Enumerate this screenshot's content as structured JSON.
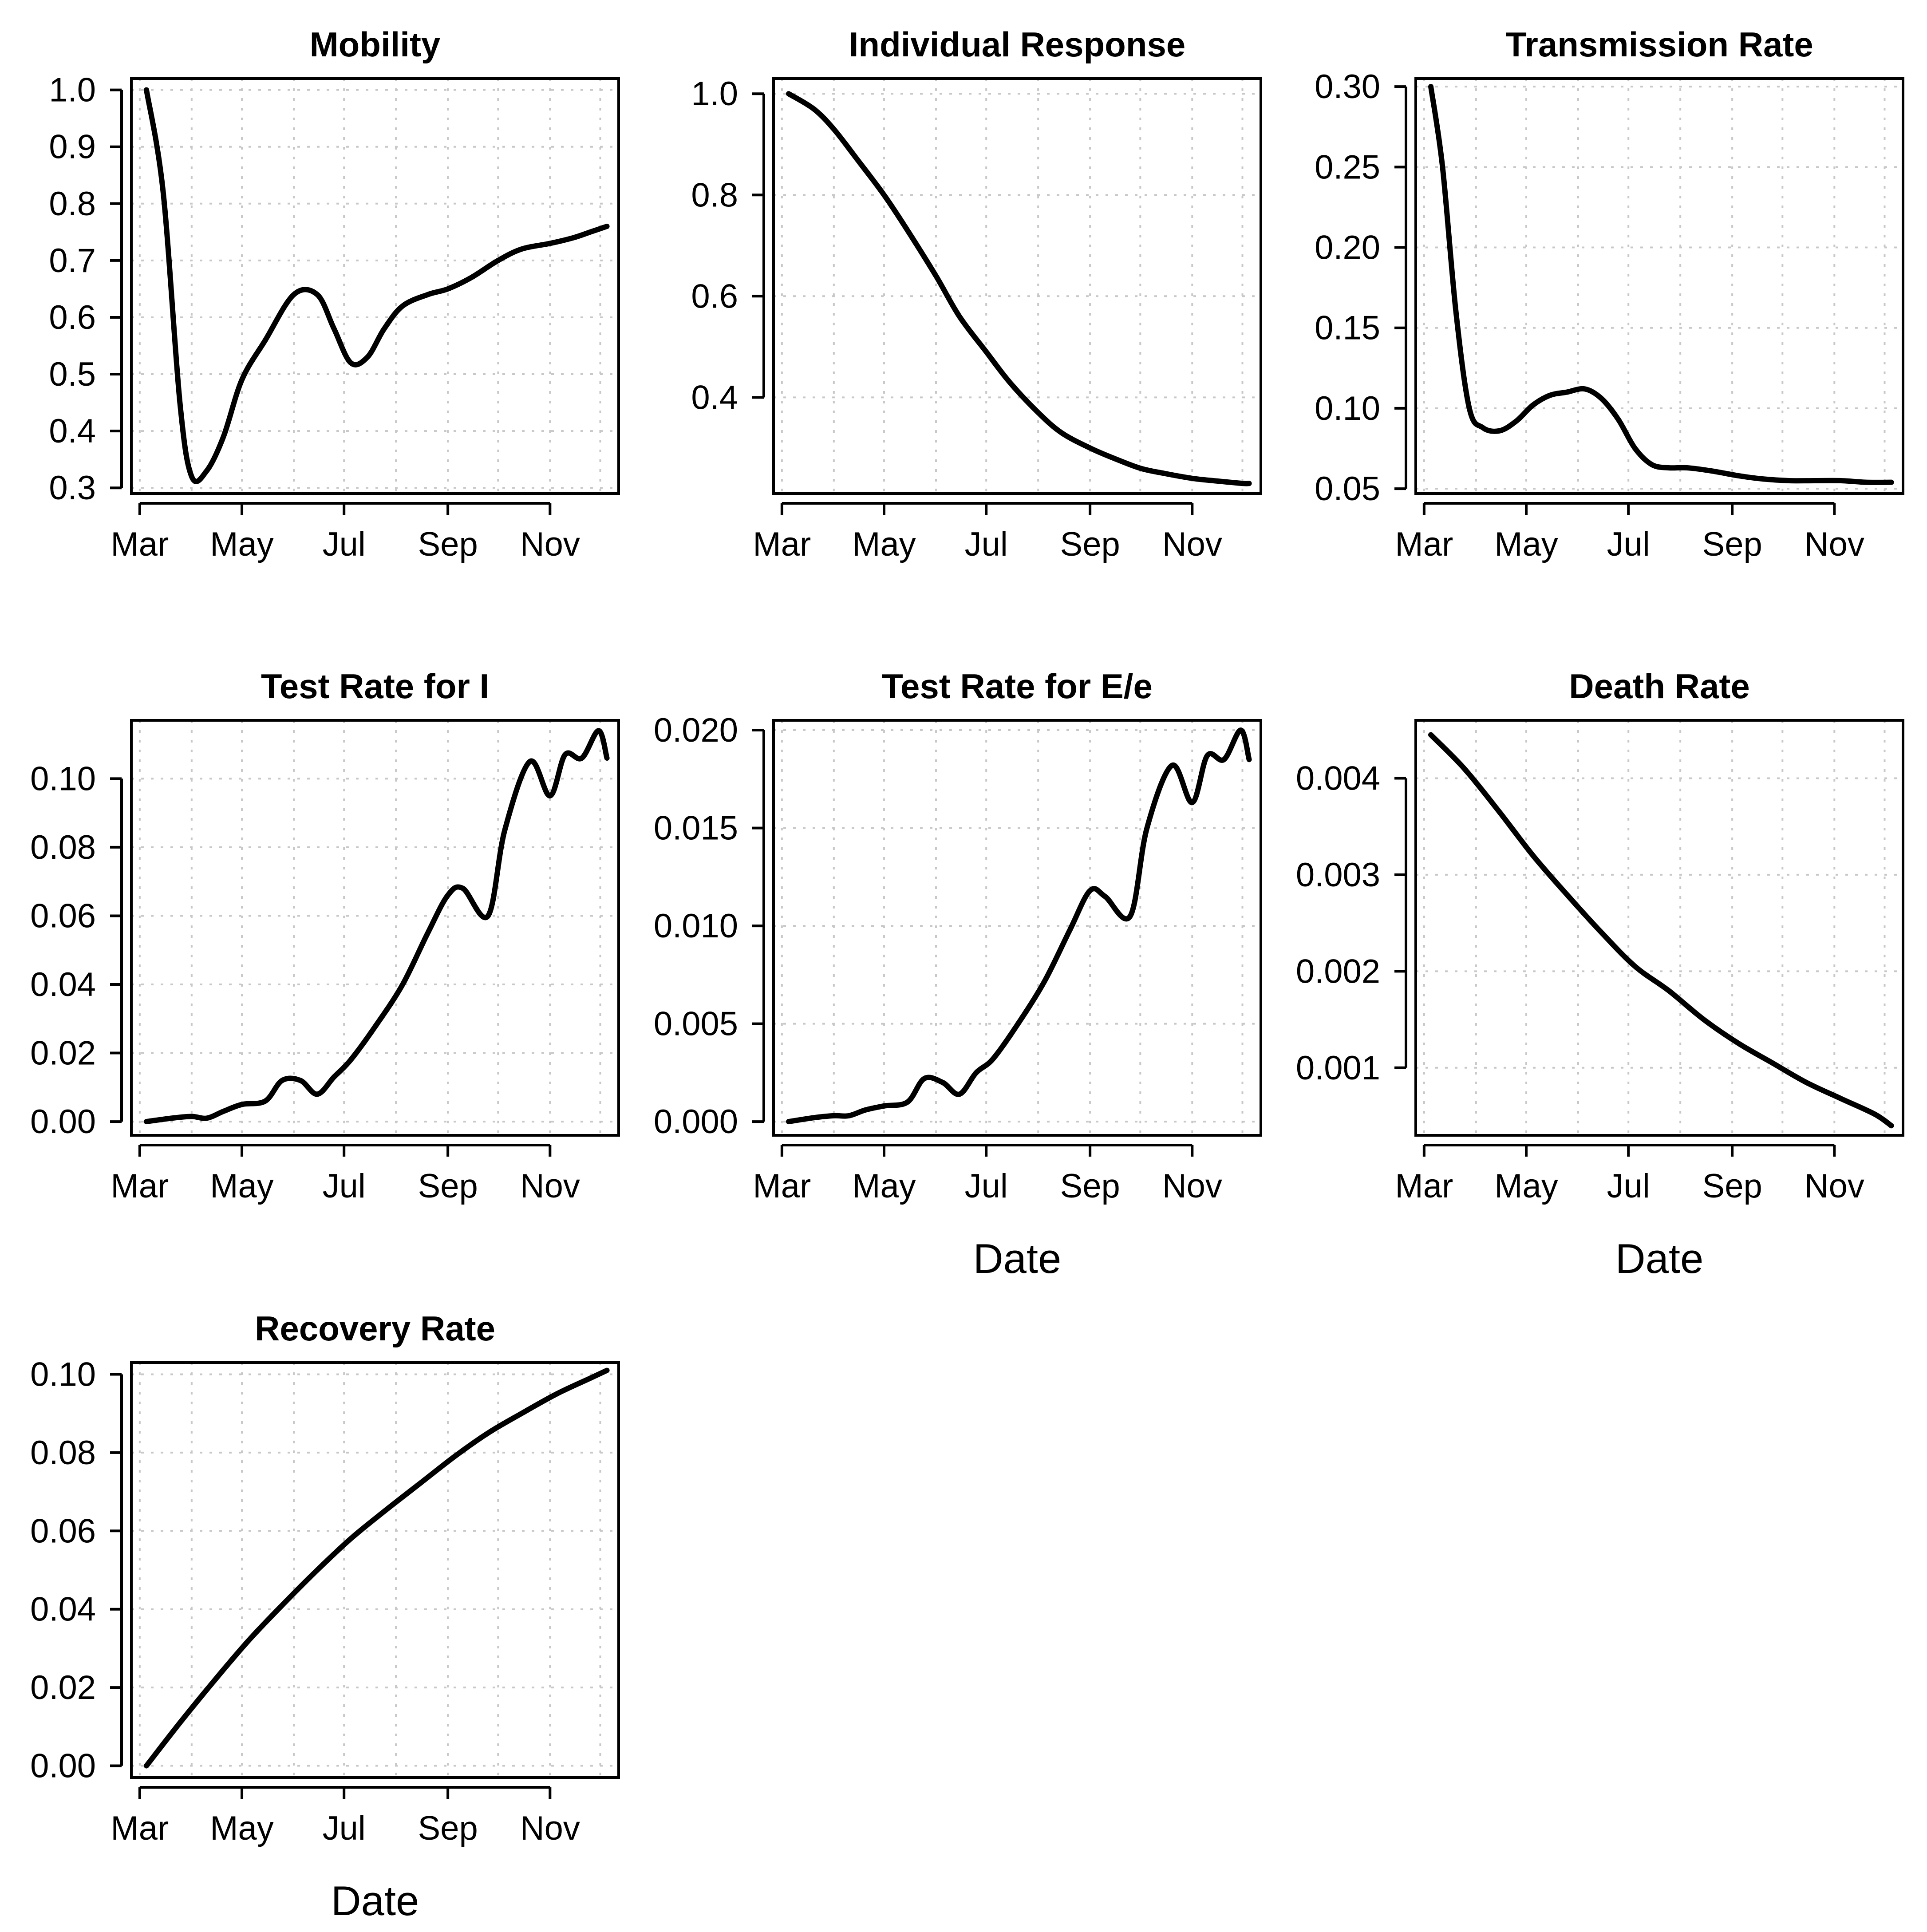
{
  "chart_data": [
    {
      "id": "mobility",
      "type": "line",
      "title": "Mobility",
      "xlabel": "",
      "ylabel": "",
      "xticks": [
        "Mar",
        "May",
        "Jul",
        "Sep",
        "Nov"
      ],
      "yticks": [
        "0.3",
        "0.4",
        "0.5",
        "0.6",
        "0.7",
        "0.8",
        "0.9",
        "1.0"
      ],
      "ylim": [
        0.29,
        1.02
      ],
      "grid": true,
      "x": [
        "2020-03-05",
        "2020-03-15",
        "2020-03-25",
        "2020-04-01",
        "2020-04-10",
        "2020-04-20",
        "2020-05-01",
        "2020-05-15",
        "2020-06-01",
        "2020-06-15",
        "2020-06-25",
        "2020-07-05",
        "2020-07-15",
        "2020-07-25",
        "2020-08-05",
        "2020-08-20",
        "2020-09-01",
        "2020-09-15",
        "2020-10-01",
        "2020-10-15",
        "2020-11-01",
        "2020-11-15",
        "2020-11-25",
        "2020-12-05"
      ],
      "y": [
        1.0,
        0.82,
        0.45,
        0.32,
        0.33,
        0.39,
        0.49,
        0.56,
        0.64,
        0.64,
        0.58,
        0.52,
        0.53,
        0.58,
        0.62,
        0.64,
        0.65,
        0.67,
        0.7,
        0.72,
        0.73,
        0.74,
        0.75,
        0.76
      ]
    },
    {
      "id": "individual-response",
      "type": "line",
      "title": "Individual Response",
      "xlabel": "",
      "ylabel": "",
      "xticks": [
        "Mar",
        "May",
        "Jul",
        "Sep",
        "Nov"
      ],
      "yticks": [
        "0.4",
        "0.6",
        "0.8",
        "1.0"
      ],
      "ylim": [
        0.21,
        1.03
      ],
      "grid": true,
      "x": [
        "2020-03-05",
        "2020-03-20",
        "2020-04-01",
        "2020-04-15",
        "2020-05-01",
        "2020-05-15",
        "2020-06-01",
        "2020-06-15",
        "2020-07-01",
        "2020-07-15",
        "2020-08-01",
        "2020-08-15",
        "2020-09-01",
        "2020-09-15",
        "2020-10-01",
        "2020-10-15",
        "2020-11-01",
        "2020-11-15",
        "2020-12-01",
        "2020-12-05"
      ],
      "y": [
        1.0,
        0.97,
        0.93,
        0.87,
        0.8,
        0.73,
        0.64,
        0.56,
        0.49,
        0.43,
        0.37,
        0.33,
        0.3,
        0.28,
        0.26,
        0.25,
        0.24,
        0.235,
        0.23,
        0.23
      ]
    },
    {
      "id": "transmission-rate",
      "type": "line",
      "title": "Transmission Rate",
      "xlabel": "",
      "ylabel": "",
      "xticks": [
        "Mar",
        "May",
        "Jul",
        "Sep",
        "Nov"
      ],
      "yticks": [
        "0.05",
        "0.10",
        "0.15",
        "0.20",
        "0.25",
        "0.30"
      ],
      "ylim": [
        0.047,
        0.305
      ],
      "grid": true,
      "x": [
        "2020-03-05",
        "2020-03-12",
        "2020-03-20",
        "2020-03-28",
        "2020-04-05",
        "2020-04-15",
        "2020-04-25",
        "2020-05-05",
        "2020-05-15",
        "2020-05-25",
        "2020-06-05",
        "2020-06-15",
        "2020-06-25",
        "2020-07-05",
        "2020-07-15",
        "2020-07-25",
        "2020-08-05",
        "2020-08-20",
        "2020-09-05",
        "2020-09-20",
        "2020-10-05",
        "2020-10-20",
        "2020-11-05",
        "2020-11-20",
        "2020-12-05"
      ],
      "y": [
        0.3,
        0.25,
        0.16,
        0.1,
        0.088,
        0.086,
        0.092,
        0.102,
        0.108,
        0.11,
        0.112,
        0.106,
        0.093,
        0.075,
        0.065,
        0.063,
        0.063,
        0.061,
        0.058,
        0.056,
        0.055,
        0.055,
        0.055,
        0.054,
        0.054
      ]
    },
    {
      "id": "test-rate-i",
      "type": "line",
      "title": "Test Rate for I",
      "xlabel": "",
      "ylabel": "",
      "xticks": [
        "Mar",
        "May",
        "Jul",
        "Sep",
        "Nov"
      ],
      "yticks": [
        "0.00",
        "0.02",
        "0.04",
        "0.06",
        "0.08",
        "0.10"
      ],
      "ylim": [
        -0.004,
        0.117
      ],
      "grid": true,
      "x": [
        "2020-03-05",
        "2020-03-20",
        "2020-04-01",
        "2020-04-10",
        "2020-04-20",
        "2020-05-01",
        "2020-05-15",
        "2020-05-25",
        "2020-06-05",
        "2020-06-15",
        "2020-06-25",
        "2020-07-05",
        "2020-07-20",
        "2020-08-05",
        "2020-08-20",
        "2020-09-01",
        "2020-09-10",
        "2020-09-25",
        "2020-10-05",
        "2020-10-20",
        "2020-11-01",
        "2020-11-10",
        "2020-11-20",
        "2020-11-30",
        "2020-12-05"
      ],
      "y": [
        0.0,
        0.001,
        0.0015,
        0.001,
        0.003,
        0.005,
        0.006,
        0.012,
        0.012,
        0.008,
        0.013,
        0.018,
        0.028,
        0.04,
        0.055,
        0.066,
        0.068,
        0.06,
        0.085,
        0.105,
        0.095,
        0.107,
        0.106,
        0.114,
        0.106
      ]
    },
    {
      "id": "test-rate-e",
      "type": "line",
      "title": "Test Rate for E/e",
      "xlabel": "Date",
      "ylabel": "",
      "xticks": [
        "Mar",
        "May",
        "Jul",
        "Sep",
        "Nov"
      ],
      "yticks": [
        "0.000",
        "0.005",
        "0.010",
        "0.015",
        "0.020"
      ],
      "ylim": [
        -0.0007,
        0.0205
      ],
      "grid": true,
      "x": [
        "2020-03-05",
        "2020-03-20",
        "2020-04-01",
        "2020-04-10",
        "2020-04-20",
        "2020-05-01",
        "2020-05-15",
        "2020-05-25",
        "2020-06-05",
        "2020-06-15",
        "2020-06-25",
        "2020-07-05",
        "2020-07-20",
        "2020-08-05",
        "2020-08-20",
        "2020-09-01",
        "2020-09-10",
        "2020-09-25",
        "2020-10-05",
        "2020-10-20",
        "2020-11-01",
        "2020-11-10",
        "2020-11-20",
        "2020-11-30",
        "2020-12-05"
      ],
      "y": [
        0.0,
        0.0002,
        0.0003,
        0.0003,
        0.0006,
        0.0008,
        0.001,
        0.0022,
        0.002,
        0.0014,
        0.0025,
        0.0032,
        0.005,
        0.0072,
        0.0098,
        0.0118,
        0.0115,
        0.0105,
        0.015,
        0.0182,
        0.0163,
        0.0187,
        0.0185,
        0.02,
        0.0185
      ]
    },
    {
      "id": "death-rate",
      "type": "line",
      "title": "Death Rate",
      "xlabel": "Date",
      "ylabel": "",
      "xticks": [
        "Mar",
        "May",
        "Jul",
        "Sep",
        "Nov"
      ],
      "yticks": [
        "0.001",
        "0.002",
        "0.003",
        "0.004"
      ],
      "ylim": [
        0.0003,
        0.0046
      ],
      "grid": true,
      "x": [
        "2020-03-05",
        "2020-03-25",
        "2020-04-15",
        "2020-05-05",
        "2020-05-25",
        "2020-06-15",
        "2020-07-05",
        "2020-07-25",
        "2020-08-15",
        "2020-09-05",
        "2020-09-25",
        "2020-10-15",
        "2020-11-05",
        "2020-11-25",
        "2020-12-05"
      ],
      "y": [
        0.00445,
        0.0041,
        0.00365,
        0.0032,
        0.0028,
        0.0024,
        0.00205,
        0.0018,
        0.0015,
        0.00125,
        0.00105,
        0.00085,
        0.00068,
        0.00052,
        0.0004
      ]
    },
    {
      "id": "recovery-rate",
      "type": "line",
      "title": "Recovery Rate",
      "xlabel": "Date",
      "ylabel": "",
      "xticks": [
        "Mar",
        "May",
        "Jul",
        "Sep",
        "Nov"
      ],
      "yticks": [
        "0.00",
        "0.02",
        "0.04",
        "0.06",
        "0.08",
        "0.10"
      ],
      "ylim": [
        -0.003,
        0.103
      ],
      "grid": true,
      "x": [
        "2020-03-05",
        "2020-03-25",
        "2020-04-15",
        "2020-05-05",
        "2020-05-25",
        "2020-06-15",
        "2020-07-05",
        "2020-07-25",
        "2020-08-15",
        "2020-09-05",
        "2020-09-25",
        "2020-10-15",
        "2020-11-05",
        "2020-11-25",
        "2020-12-05"
      ],
      "y": [
        0.0,
        0.011,
        0.022,
        0.032,
        0.041,
        0.05,
        0.058,
        0.065,
        0.072,
        0.079,
        0.085,
        0.09,
        0.095,
        0.099,
        0.101
      ]
    }
  ]
}
